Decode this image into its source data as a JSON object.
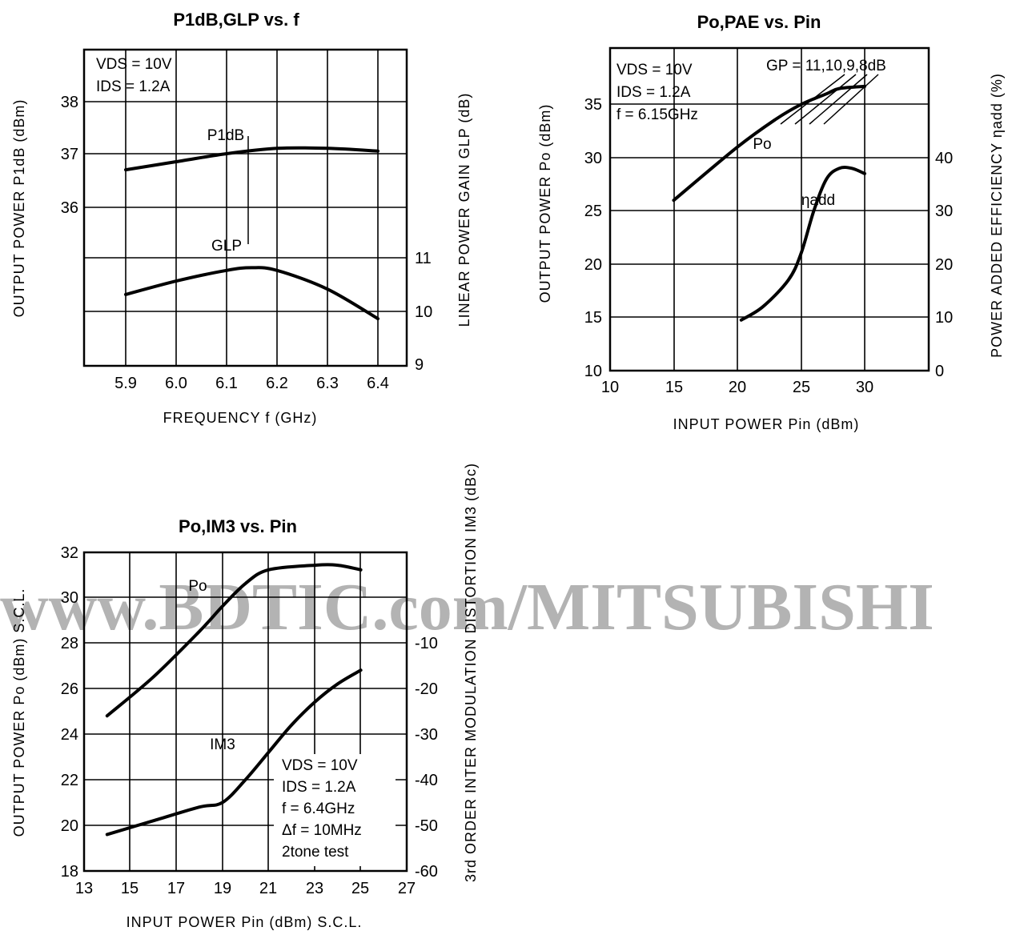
{
  "watermark": "www.BDTIC.com/MITSUBISHI",
  "chart_data": [
    {
      "type": "line",
      "title": "P1dB,GLP vs. f",
      "xlabel": "FREQUENCY f (GHz)",
      "ylabel": "OUTPUT POWER P1dB (dBm)",
      "y2label": "LINEAR POWER GAIN GLP (dB)",
      "xticks": [
        "5.9",
        "6.0",
        "6.1",
        "6.2",
        "6.3",
        "6.4"
      ],
      "yticks": [
        "36",
        "37",
        "38"
      ],
      "y2ticks": [
        "9",
        "10",
        "11"
      ],
      "annotations": [
        "VDS = 10V",
        "IDS = 1.2A"
      ],
      "series": [
        {
          "name": "P1dB",
          "axis": "left",
          "x": [
            5.9,
            6.0,
            6.1,
            6.2,
            6.3,
            6.4
          ],
          "y": [
            36.7,
            36.85,
            37.0,
            37.1,
            37.1,
            37.05
          ]
        },
        {
          "name": "GLP",
          "axis": "right",
          "x": [
            5.9,
            6.0,
            6.1,
            6.15,
            6.2,
            6.3,
            6.4
          ],
          "y": [
            10.3,
            10.55,
            10.75,
            10.8,
            10.75,
            10.4,
            9.85
          ]
        }
      ]
    },
    {
      "type": "line",
      "title": "Po,PAE vs. Pin",
      "xlabel": "INPUT POWER Pin (dBm)",
      "ylabel": "OUTPUT POWER Po (dBm)",
      "y2label": "POWER ADDED EFFICIENCY ηadd (%)",
      "xticks": [
        "10",
        "15",
        "20",
        "25",
        "30"
      ],
      "yticks": [
        "10",
        "15",
        "20",
        "25",
        "30",
        "35"
      ],
      "y2ticks": [
        "0",
        "10",
        "20",
        "30",
        "40"
      ],
      "annotations": [
        "VDS = 10V",
        "IDS = 1.2A",
        "f = 6.15GHz",
        "GP = 11,10,9,8dB"
      ],
      "series": [
        {
          "name": "Po",
          "axis": "left",
          "x": [
            15,
            20,
            23,
            25,
            27,
            28,
            30
          ],
          "y": [
            26,
            31,
            33.6,
            35,
            36,
            36.5,
            36.7
          ]
        },
        {
          "name": "ηadd",
          "axis": "right",
          "x": [
            20.3,
            22,
            24,
            25,
            26,
            27,
            28,
            29,
            30
          ],
          "y": [
            9.5,
            12,
            17,
            22,
            30,
            36,
            38,
            38,
            37
          ]
        }
      ]
    },
    {
      "type": "line",
      "title": "Po,IM3 vs. Pin",
      "xlabel": "INPUT POWER Pin (dBm) S.C.L.",
      "ylabel": "OUTPUT POWER Po (dBm) S.C.L.",
      "y2label": "3rd ORDER INTER MODULATION DISTORTION IM3 (dBc)",
      "xticks": [
        "13",
        "15",
        "17",
        "19",
        "21",
        "23",
        "25",
        "27"
      ],
      "yticks": [
        "18",
        "20",
        "22",
        "24",
        "26",
        "28",
        "30",
        "32"
      ],
      "y2ticks": [
        "-10",
        "-20",
        "-30",
        "-40",
        "-50",
        "-60"
      ],
      "annotations": [
        "VDS = 10V",
        "IDS = 1.2A",
        "f = 6.4GHz",
        "Δf = 10MHz",
        "2tone test"
      ],
      "series": [
        {
          "name": "Po",
          "axis": "left",
          "x": [
            14,
            16,
            18,
            19,
            20,
            21,
            23,
            24,
            25
          ],
          "y": [
            24.8,
            26.5,
            28.5,
            29.6,
            30.6,
            31.2,
            31.4,
            31.4,
            31.2
          ]
        },
        {
          "name": "IM3",
          "axis": "right",
          "x": [
            14,
            16,
            18,
            19,
            20,
            21,
            22,
            23,
            24,
            25
          ],
          "y": [
            -52,
            -49,
            -46,
            -45,
            -40,
            -34,
            -28,
            -23,
            -19,
            -16
          ]
        }
      ]
    }
  ]
}
